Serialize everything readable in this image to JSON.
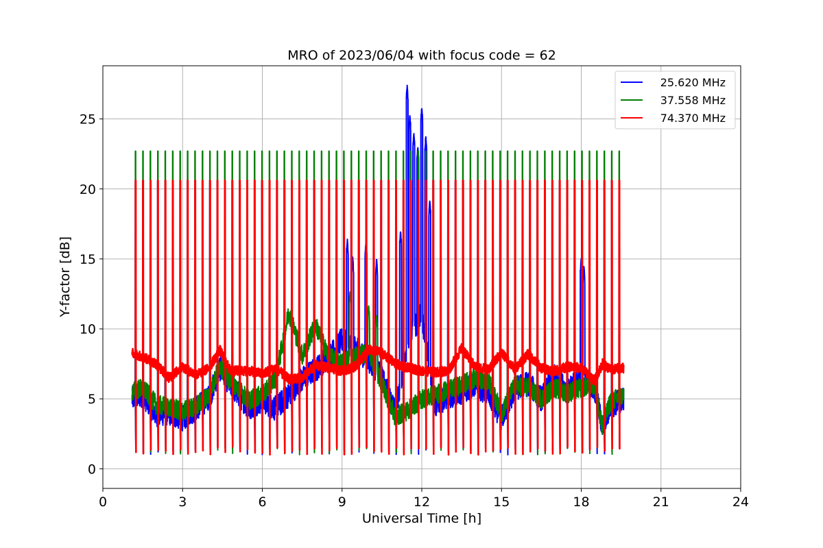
{
  "chart_data": {
    "type": "line",
    "title": "MRO of 2023/06/04 with focus code = 62",
    "xlabel": "Universal Time [h]",
    "ylabel": "Y-factor [dB]",
    "xlim": [
      0,
      24
    ],
    "ylim": [
      -1.4,
      28.8
    ],
    "xticks": [
      0,
      3,
      6,
      9,
      12,
      15,
      18,
      21,
      24
    ],
    "yticks": [
      0,
      5,
      10,
      15,
      20,
      25
    ],
    "grid": true,
    "legend_position": "top-right",
    "data_range_hours": [
      1.1,
      19.6
    ],
    "calibration_spike_interval_hours": 0.28,
    "series": [
      {
        "name": "25.620 MHz",
        "color": "#0000ff",
        "spike_peak": 20.6,
        "baseline": [
          [
            1.1,
            5.0
          ],
          [
            1.5,
            5.3
          ],
          [
            2.0,
            3.9
          ],
          [
            2.5,
            4.0
          ],
          [
            3.0,
            3.6
          ],
          [
            3.5,
            4.3
          ],
          [
            4.0,
            5.1
          ],
          [
            4.4,
            7.2
          ],
          [
            4.8,
            6.0
          ],
          [
            5.5,
            4.4
          ],
          [
            6.0,
            4.9
          ],
          [
            6.5,
            4.3
          ],
          [
            7.0,
            5.3
          ],
          [
            7.5,
            6.4
          ],
          [
            8.0,
            7.1
          ],
          [
            8.5,
            8.0
          ],
          [
            9.0,
            9.2
          ],
          [
            9.5,
            8.6
          ],
          [
            10.0,
            7.8
          ],
          [
            10.5,
            6.5
          ],
          [
            11.0,
            4.0
          ],
          [
            11.5,
            9.5
          ],
          [
            12.0,
            11.0
          ],
          [
            12.5,
            4.6
          ],
          [
            13.0,
            5.2
          ],
          [
            13.5,
            5.5
          ],
          [
            14.0,
            6.0
          ],
          [
            14.5,
            5.4
          ],
          [
            15.0,
            3.6
          ],
          [
            15.5,
            5.7
          ],
          [
            16.0,
            6.1
          ],
          [
            16.5,
            5.0
          ],
          [
            17.0,
            6.6
          ],
          [
            17.5,
            5.5
          ],
          [
            18.0,
            6.6
          ],
          [
            18.5,
            5.8
          ],
          [
            18.8,
            2.9
          ],
          [
            19.1,
            4.5
          ],
          [
            19.6,
            5.0
          ]
        ],
        "peaks": [
          [
            9.2,
            16.4
          ],
          [
            9.4,
            15.2
          ],
          [
            9.9,
            16.2
          ],
          [
            10.3,
            15.0
          ],
          [
            11.2,
            17.0
          ],
          [
            11.45,
            27.4
          ],
          [
            11.55,
            25.3
          ],
          [
            11.7,
            24.0
          ],
          [
            11.85,
            23.0
          ],
          [
            12.0,
            25.8
          ],
          [
            12.15,
            23.8
          ],
          [
            12.3,
            19.2
          ],
          [
            18.0,
            15.1
          ],
          [
            18.1,
            14.5
          ]
        ]
      },
      {
        "name": "37.558 MHz",
        "color": "#007f00",
        "spike_peak": 22.7,
        "baseline": [
          [
            1.1,
            5.5
          ],
          [
            1.5,
            5.8
          ],
          [
            2.0,
            4.6
          ],
          [
            2.5,
            4.4
          ],
          [
            3.0,
            4.1
          ],
          [
            3.5,
            4.5
          ],
          [
            4.0,
            5.3
          ],
          [
            4.4,
            7.4
          ],
          [
            4.8,
            6.3
          ],
          [
            5.5,
            4.9
          ],
          [
            6.0,
            5.3
          ],
          [
            6.5,
            6.5
          ],
          [
            7.0,
            11.2
          ],
          [
            7.5,
            8.1
          ],
          [
            8.0,
            10.3
          ],
          [
            8.5,
            8.0
          ],
          [
            9.0,
            7.6
          ],
          [
            9.5,
            8.0
          ],
          [
            10.0,
            8.3
          ],
          [
            10.5,
            6.1
          ],
          [
            11.0,
            3.7
          ],
          [
            11.5,
            4.2
          ],
          [
            12.0,
            5.0
          ],
          [
            12.5,
            5.3
          ],
          [
            13.0,
            5.6
          ],
          [
            13.5,
            6.0
          ],
          [
            14.0,
            6.5
          ],
          [
            14.5,
            6.3
          ],
          [
            15.0,
            4.0
          ],
          [
            15.5,
            6.0
          ],
          [
            16.0,
            5.8
          ],
          [
            16.5,
            5.0
          ],
          [
            17.0,
            5.8
          ],
          [
            17.5,
            5.4
          ],
          [
            18.0,
            5.8
          ],
          [
            18.5,
            6.0
          ],
          [
            18.8,
            3.0
          ],
          [
            19.1,
            4.8
          ],
          [
            19.6,
            5.3
          ]
        ],
        "peaks": [
          [
            9.3,
            12.7
          ],
          [
            10.0,
            11.7
          ],
          [
            10.3,
            11.0
          ]
        ]
      },
      {
        "name": "74.370 MHz",
        "color": "#ff0000",
        "spike_peak": 20.6,
        "baseline": [
          [
            1.1,
            8.3
          ],
          [
            1.5,
            8.0
          ],
          [
            2.0,
            7.5
          ],
          [
            2.5,
            6.5
          ],
          [
            3.0,
            7.3
          ],
          [
            3.5,
            6.7
          ],
          [
            4.0,
            7.2
          ],
          [
            4.4,
            8.5
          ],
          [
            4.8,
            7.0
          ],
          [
            5.5,
            7.0
          ],
          [
            6.0,
            6.8
          ],
          [
            6.5,
            7.2
          ],
          [
            7.0,
            6.4
          ],
          [
            7.5,
            6.5
          ],
          [
            8.0,
            7.4
          ],
          [
            8.5,
            7.2
          ],
          [
            9.0,
            7.0
          ],
          [
            9.5,
            7.3
          ],
          [
            10.0,
            8.5
          ],
          [
            10.5,
            8.3
          ],
          [
            11.0,
            7.5
          ],
          [
            11.5,
            7.2
          ],
          [
            12.0,
            7.0
          ],
          [
            12.5,
            6.9
          ],
          [
            13.0,
            7.0
          ],
          [
            13.5,
            8.6
          ],
          [
            14.0,
            7.3
          ],
          [
            14.5,
            7.1
          ],
          [
            15.0,
            8.3
          ],
          [
            15.5,
            7.1
          ],
          [
            16.0,
            8.2
          ],
          [
            16.5,
            7.2
          ],
          [
            17.0,
            7.0
          ],
          [
            17.5,
            7.3
          ],
          [
            18.0,
            7.2
          ],
          [
            18.5,
            6.3
          ],
          [
            18.8,
            7.5
          ],
          [
            19.1,
            7.1
          ],
          [
            19.6,
            7.2
          ]
        ],
        "peaks": []
      }
    ]
  }
}
